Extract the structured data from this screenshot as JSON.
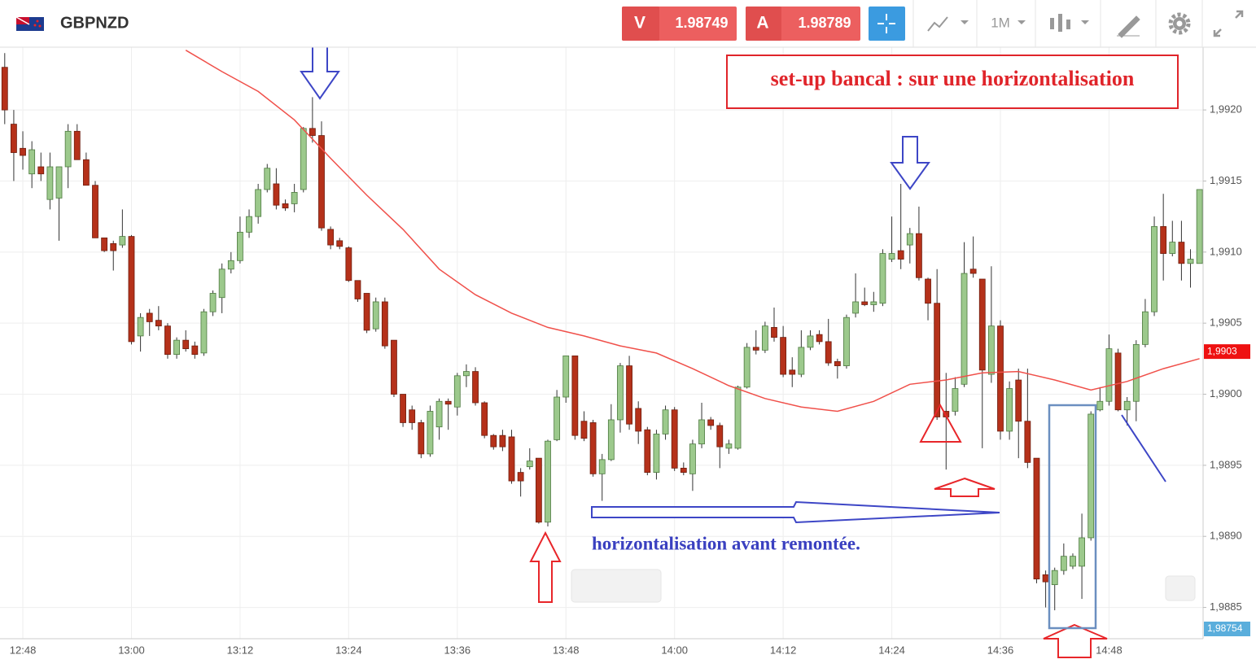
{
  "header": {
    "symbol": "GBPNZD",
    "sell_label": "V",
    "sell_price": 1.98749,
    "buy_label": "A",
    "buy_price": 1.98789,
    "timeframe": "1M"
  },
  "chart_data": {
    "type": "candlestick",
    "up_color": "#9cc98c",
    "down_color": "#b5311a",
    "grid": true,
    "categories": [
      null,
      null,
      "12:48",
      null,
      null,
      null,
      null,
      null,
      null,
      null,
      null,
      null,
      null,
      null,
      "13:00",
      null,
      null,
      null,
      null,
      null,
      null,
      null,
      null,
      null,
      null,
      null,
      "13:12",
      null,
      null,
      null,
      null,
      null,
      null,
      null,
      null,
      null,
      null,
      null,
      "13:24",
      null,
      null,
      null,
      null,
      null,
      null,
      null,
      null,
      null,
      null,
      null,
      "13:36",
      null,
      null,
      null,
      null,
      null,
      null,
      null,
      null,
      null,
      null,
      null,
      "13:48",
      null,
      null,
      null,
      null,
      null,
      null,
      null,
      null,
      null,
      null,
      null,
      "14:00",
      null,
      null,
      null,
      null,
      null,
      null,
      null,
      null,
      null,
      null,
      null,
      "14:12",
      null,
      null,
      null,
      null,
      null,
      null,
      null,
      null,
      null,
      null,
      null,
      "14:24",
      null,
      null,
      null,
      null,
      null,
      null,
      null,
      null,
      null,
      null,
      null,
      "14:36",
      null,
      null,
      null,
      null,
      null,
      null,
      null,
      null,
      null,
      null,
      null,
      "14:48",
      null,
      null,
      null,
      null,
      null,
      null,
      null,
      null,
      null,
      null
    ],
    "open": [
      1.9923,
      1.9919,
      1.99173,
      1.99155,
      1.9916,
      1.99137,
      1.99138,
      1.9916,
      1.99185,
      1.99165,
      1.99147,
      1.9911,
      1.99106,
      1.99105,
      1.99111,
      1.99041,
      1.99057,
      1.99052,
      1.99048,
      1.99028,
      1.99038,
      1.99034,
      1.99029,
      1.99058,
      1.99068,
      1.99088,
      1.99094,
      1.99114,
      1.99125,
      1.99144,
      1.99148,
      1.99134,
      1.99134,
      1.99144,
      1.99187,
      1.99182,
      1.99116,
      1.99108,
      1.99103,
      1.9908,
      1.99071,
      1.99046,
      1.99065,
      1.99038,
      1.99,
      1.98989,
      1.9898,
      1.98958,
      1.98977,
      1.98995,
      1.98991,
      1.99013,
      1.99016,
      1.98994,
      1.98971,
      1.98971,
      1.9897,
      1.98945,
      1.98949,
      1.98955,
      1.9891,
      1.98968,
      1.98998,
      1.99027,
      1.98981,
      1.9898,
      1.98944,
      1.98954,
      1.98982,
      1.9902,
      1.9899,
      1.98975,
      1.98945,
      1.98972,
      1.98989,
      1.98948,
      1.98944,
      1.98965,
      1.98982,
      1.98978,
      1.98962,
      1.98962,
      1.99005,
      1.99033,
      1.99031,
      1.99047,
      1.9904,
      1.99017,
      1.99014,
      1.99033,
      1.99042,
      1.99037,
      1.99023,
      1.9902,
      1.99057,
      1.99065,
      1.99063,
      1.99064,
      1.99095,
      1.99101,
      1.99105,
      1.99113,
      1.99081,
      1.99064,
      1.98988,
      1.98988,
      1.99007,
      1.99088,
      1.99081,
      1.99014,
      1.99048,
      1.98974,
      1.9901,
      1.98981,
      1.98955,
      1.98873,
      1.98866,
      1.98876,
      1.98879,
      1.98879,
      1.98899,
      1.98989,
      1.98995,
      1.99029,
      1.98989,
      1.98995,
      1.99035,
      1.99058,
      1.99118,
      1.99099,
      1.99107,
      1.99092,
      1.99092
    ],
    "high": [
      1.9924,
      1.992,
      1.99185,
      1.99178,
      1.9917,
      1.9917,
      1.9916,
      1.9919,
      1.9919,
      1.9917,
      1.9915,
      1.9911,
      1.99108,
      1.9913,
      1.99112,
      1.99057,
      1.9906,
      1.99062,
      1.9905,
      1.9904,
      1.99045,
      1.99037,
      1.9906,
      1.99073,
      1.99092,
      1.991,
      1.99125,
      1.9913,
      1.99148,
      1.99162,
      1.99159,
      1.99137,
      1.99148,
      1.99188,
      1.99209,
      1.99192,
      1.99118,
      1.9911,
      1.99104,
      1.9908,
      1.99071,
      1.99068,
      1.99068,
      1.99038,
      1.99,
      1.98992,
      1.98982,
      1.98992,
      1.98997,
      1.98997,
      1.99015,
      1.99021,
      1.99019,
      1.98995,
      1.98972,
      1.98975,
      1.98975,
      1.98948,
      1.98962,
      1.98955,
      1.98968,
      1.99003,
      1.99027,
      1.99027,
      1.98988,
      1.98982,
      1.98958,
      1.98993,
      1.99022,
      1.99027,
      1.98995,
      1.98977,
      1.98975,
      1.98992,
      1.98991,
      1.98952,
      1.98968,
      1.98994,
      1.98984,
      1.9898,
      1.98968,
      1.99006,
      1.99036,
      1.99045,
      1.99051,
      1.99061,
      1.99048,
      1.99026,
      1.99045,
      1.99045,
      1.99045,
      1.99053,
      1.99025,
      1.99056,
      1.99085,
      1.99075,
      1.99072,
      1.99102,
      1.99125,
      1.99148,
      1.99117,
      1.99132,
      1.99082,
      1.99088,
      1.99015,
      1.99012,
      1.99107,
      1.99111,
      1.99081,
      1.9909,
      1.99052,
      1.99009,
      1.99018,
      1.99018,
      1.98955,
      1.98876,
      1.98878,
      1.98895,
      1.98888,
      1.98916,
      1.98988,
      1.99005,
      1.99042,
      1.99032,
      1.98998,
      1.99038,
      1.99067,
      1.99125,
      1.99141,
      1.99122,
      1.99122,
      1.99102,
      1.99144
    ],
    "low": [
      1.9919,
      1.9915,
      1.99158,
      1.99145,
      1.9915,
      1.9913,
      1.99108,
      1.99145,
      1.99165,
      1.99147,
      1.9911,
      1.991,
      1.99087,
      1.99103,
      1.99035,
      1.9903,
      1.99041,
      1.99045,
      1.99025,
      1.99025,
      1.9903,
      1.99025,
      1.99027,
      1.99055,
      1.99057,
      1.99085,
      1.99092,
      1.9911,
      1.9912,
      1.99142,
      1.9913,
      1.99129,
      1.99128,
      1.99142,
      1.99177,
      1.99115,
      1.99102,
      1.99102,
      1.99079,
      1.99065,
      1.99043,
      1.99044,
      1.99032,
      1.98998,
      1.98977,
      1.98975,
      1.98955,
      1.98956,
      1.98968,
      1.98975,
      1.98985,
      1.99005,
      1.98992,
      1.98969,
      1.98961,
      1.9896,
      1.98937,
      1.98928,
      1.98947,
      1.98909,
      1.98907,
      1.98967,
      1.98994,
      1.98968,
      1.98967,
      1.98942,
      1.98925,
      1.98953,
      1.98973,
      1.98975,
      1.98965,
      1.98943,
      1.9894,
      1.98968,
      1.98946,
      1.98943,
      1.98932,
      1.98962,
      1.98975,
      1.98948,
      1.98958,
      1.98961,
      1.99004,
      1.99028,
      1.99029,
      1.99037,
      1.99012,
      1.99005,
      1.99012,
      1.99031,
      1.99035,
      1.9902,
      1.99011,
      1.99018,
      1.99054,
      1.99062,
      1.99058,
      1.99062,
      1.99093,
      1.99088,
      1.99092,
      1.9908,
      1.99052,
      1.98982,
      1.98947,
      1.98985,
      1.99005,
      1.99082,
      1.98962,
      1.99008,
      1.98968,
      1.98968,
      1.98955,
      1.98948,
      1.98867,
      1.9885,
      1.98848,
      1.98873,
      1.98877,
      1.98856,
      1.98897,
      1.98988,
      1.98992,
      1.98988,
      1.98978,
      1.98981,
      1.99033,
      1.99055,
      1.9908,
      1.99097,
      1.9908,
      1.99075,
      1.99092
    ],
    "close": [
      1.992,
      1.9917,
      1.99168,
      1.99172,
      1.99155,
      1.9916,
      1.9916,
      1.99185,
      1.99165,
      1.99147,
      1.9911,
      1.99101,
      1.99101,
      1.99111,
      1.99037,
      1.99054,
      1.99051,
      1.99048,
      1.99028,
      1.99038,
      1.99032,
      1.99028,
      1.99058,
      1.99071,
      1.99088,
      1.99094,
      1.99114,
      1.99125,
      1.99144,
      1.99159,
      1.99133,
      1.99131,
      1.99142,
      1.99187,
      1.99182,
      1.99117,
      1.99105,
      1.99104,
      1.9908,
      1.99067,
      1.99045,
      1.99065,
      1.99034,
      1.99,
      1.9898,
      1.9898,
      1.98958,
      1.98988,
      1.98995,
      1.98993,
      1.99013,
      1.99016,
      1.98994,
      1.98971,
      1.98963,
      1.98963,
      1.98939,
      1.98939,
      1.98953,
      1.9891,
      1.98967,
      1.98998,
      1.99027,
      1.98971,
      1.98969,
      1.98944,
      1.98954,
      1.98982,
      1.9902,
      1.98979,
      1.98974,
      1.98945,
      1.98972,
      1.98989,
      1.98948,
      1.98945,
      1.98965,
      1.98982,
      1.98978,
      1.98963,
      1.98965,
      1.99005,
      1.99033,
      1.99031,
      1.99048,
      1.9904,
      1.99014,
      1.99014,
      1.99033,
      1.99041,
      1.99037,
      1.99022,
      1.9902,
      1.99054,
      1.99065,
      1.99063,
      1.99065,
      1.99099,
      1.99099,
      1.99095,
      1.99113,
      1.99082,
      1.99064,
      1.98984,
      1.98984,
      1.99004,
      1.99085,
      1.99085,
      1.99017,
      1.99048,
      1.98974,
      1.99004,
      1.98981,
      1.98952,
      1.9887,
      1.98868,
      1.98876,
      1.98886,
      1.98886,
      1.98899,
      1.98986,
      1.98995,
      1.99032,
      1.98989,
      1.98995,
      1.99035,
      1.99058,
      1.99118,
      1.99099,
      1.99107,
      1.99092,
      1.99095,
      1.99144
    ],
    "moving_average": {
      "color": "#f0504a",
      "x": [
        20,
        24,
        28,
        32,
        36,
        40,
        44,
        48,
        52,
        56,
        60,
        64,
        68,
        72,
        76,
        80,
        84,
        88,
        92,
        96,
        100,
        104,
        108,
        112,
        116,
        120,
        124,
        128,
        132
      ],
      "values": [
        1.99242,
        1.99227,
        1.99213,
        1.99193,
        1.99166,
        1.9914,
        1.99116,
        1.99088,
        1.9907,
        1.99057,
        1.99047,
        1.99041,
        1.99034,
        1.99029,
        1.99018,
        1.99006,
        1.98997,
        1.98991,
        1.98988,
        1.98995,
        1.99007,
        1.9901,
        1.99015,
        1.99016,
        1.9901,
        1.99003,
        1.99009,
        1.99018,
        1.99025
      ]
    },
    "ylim": [
      1.98828,
      1.99243
    ],
    "yticks": [
      {
        "value": 1.9885,
        "label": "1,9885"
      },
      {
        "value": 1.989,
        "label": "1,9890"
      },
      {
        "value": 1.9895,
        "label": "1,9895"
      },
      {
        "value": 1.99,
        "label": "1,9900"
      },
      {
        "value": 1.9905,
        "label": "1,9905"
      },
      {
        "value": 1.991,
        "label": "1,9910"
      },
      {
        "value": 1.9915,
        "label": "1,9915"
      },
      {
        "value": 1.992,
        "label": "1,9920"
      }
    ],
    "price_labels": [
      {
        "value": 1.9903,
        "label": "1,9903",
        "color": "#ee1111"
      },
      {
        "value": 1.98754,
        "label": "1,98754",
        "color": "#5aaedc"
      }
    ],
    "annotations": [
      "set-up bancal : sur une horizontalisation",
      "horizontalisation avant remontée."
    ]
  }
}
